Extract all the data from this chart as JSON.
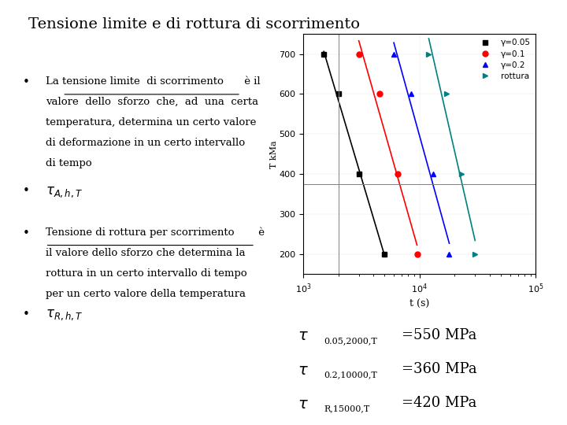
{
  "title": "Tensione limite e di rottura di scorrimento",
  "bg_color": "#ffffff",
  "series": [
    {
      "label": "γ=0.05",
      "color": "black",
      "marker": "s",
      "x": [
        1500,
        2000,
        3000,
        5000
      ],
      "y": [
        700,
        600,
        400,
        200
      ]
    },
    {
      "label": "γ=0.1",
      "color": "red",
      "marker": "o",
      "x": [
        3000,
        4500,
        6500,
        9500
      ],
      "y": [
        700,
        600,
        400,
        200
      ]
    },
    {
      "label": "γ=0.2",
      "color": "blue",
      "marker": "^",
      "x": [
        6000,
        8500,
        13000,
        18000
      ],
      "y": [
        700,
        600,
        400,
        200
      ]
    },
    {
      "label": "rottura",
      "color": "#008080",
      "marker": ">",
      "x": [
        12000,
        17000,
        23000,
        30000
      ],
      "y": [
        700,
        600,
        400,
        200
      ]
    }
  ],
  "xlabel": "t (s)",
  "xmin": 1000,
  "xmax": 100000,
  "ymin": 150,
  "ymax": 750,
  "yticks": [
    200,
    300,
    400,
    500,
    600,
    700
  ],
  "crosshair_x": 2000,
  "crosshair_y": 375
}
